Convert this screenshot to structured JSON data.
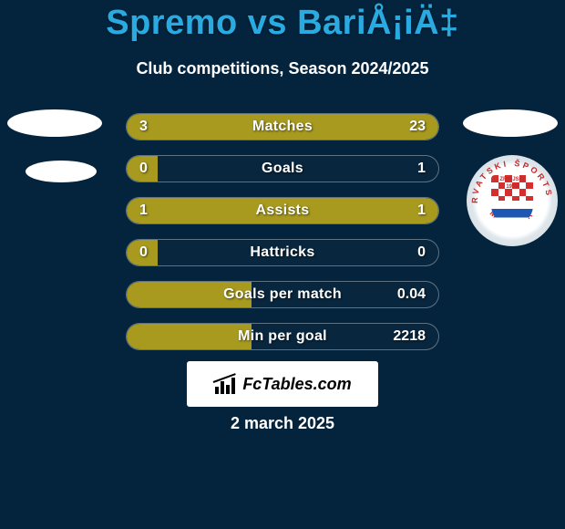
{
  "title": "Spremo vs BariÅ¡iÄ‡",
  "subtitle": "Club competitions, Season 2024/2025",
  "date": "2 march 2025",
  "logo_text": "FcTables.com",
  "colors": {
    "background": "#04233c",
    "title": "#29abe2",
    "text": "#ffffff",
    "bar_fill": "#a79a1f",
    "bar_border": "rgba(255,255,255,0.35)"
  },
  "badge": {
    "top_text": "HRVATSKI ŠPORTSKI",
    "bottom_text": "MOSTAR",
    "center_top": "ZRINJSKI",
    "center_year": "1905",
    "colors": {
      "ring_outer": "#c7d1d8",
      "ring_inner": "#ffffff",
      "text": "#c62828",
      "check_red": "#d32f2f",
      "check_white": "#ffffff",
      "band_blue": "#1e56b3"
    }
  },
  "bars": [
    {
      "label": "Matches",
      "left": "3",
      "right": "23",
      "left_pct": 18,
      "right_pct": 82
    },
    {
      "label": "Goals",
      "left": "0",
      "right": "1",
      "left_pct": 10,
      "right_pct": 0
    },
    {
      "label": "Assists",
      "left": "1",
      "right": "1",
      "left_pct": 50,
      "right_pct": 50
    },
    {
      "label": "Hattricks",
      "left": "0",
      "right": "0",
      "left_pct": 10,
      "right_pct": 0
    },
    {
      "label": "Goals per match",
      "left": "",
      "right": "0.04",
      "left_pct": 40,
      "right_pct": 0
    },
    {
      "label": "Min per goal",
      "left": "",
      "right": "2218",
      "left_pct": 40,
      "right_pct": 0
    }
  ]
}
